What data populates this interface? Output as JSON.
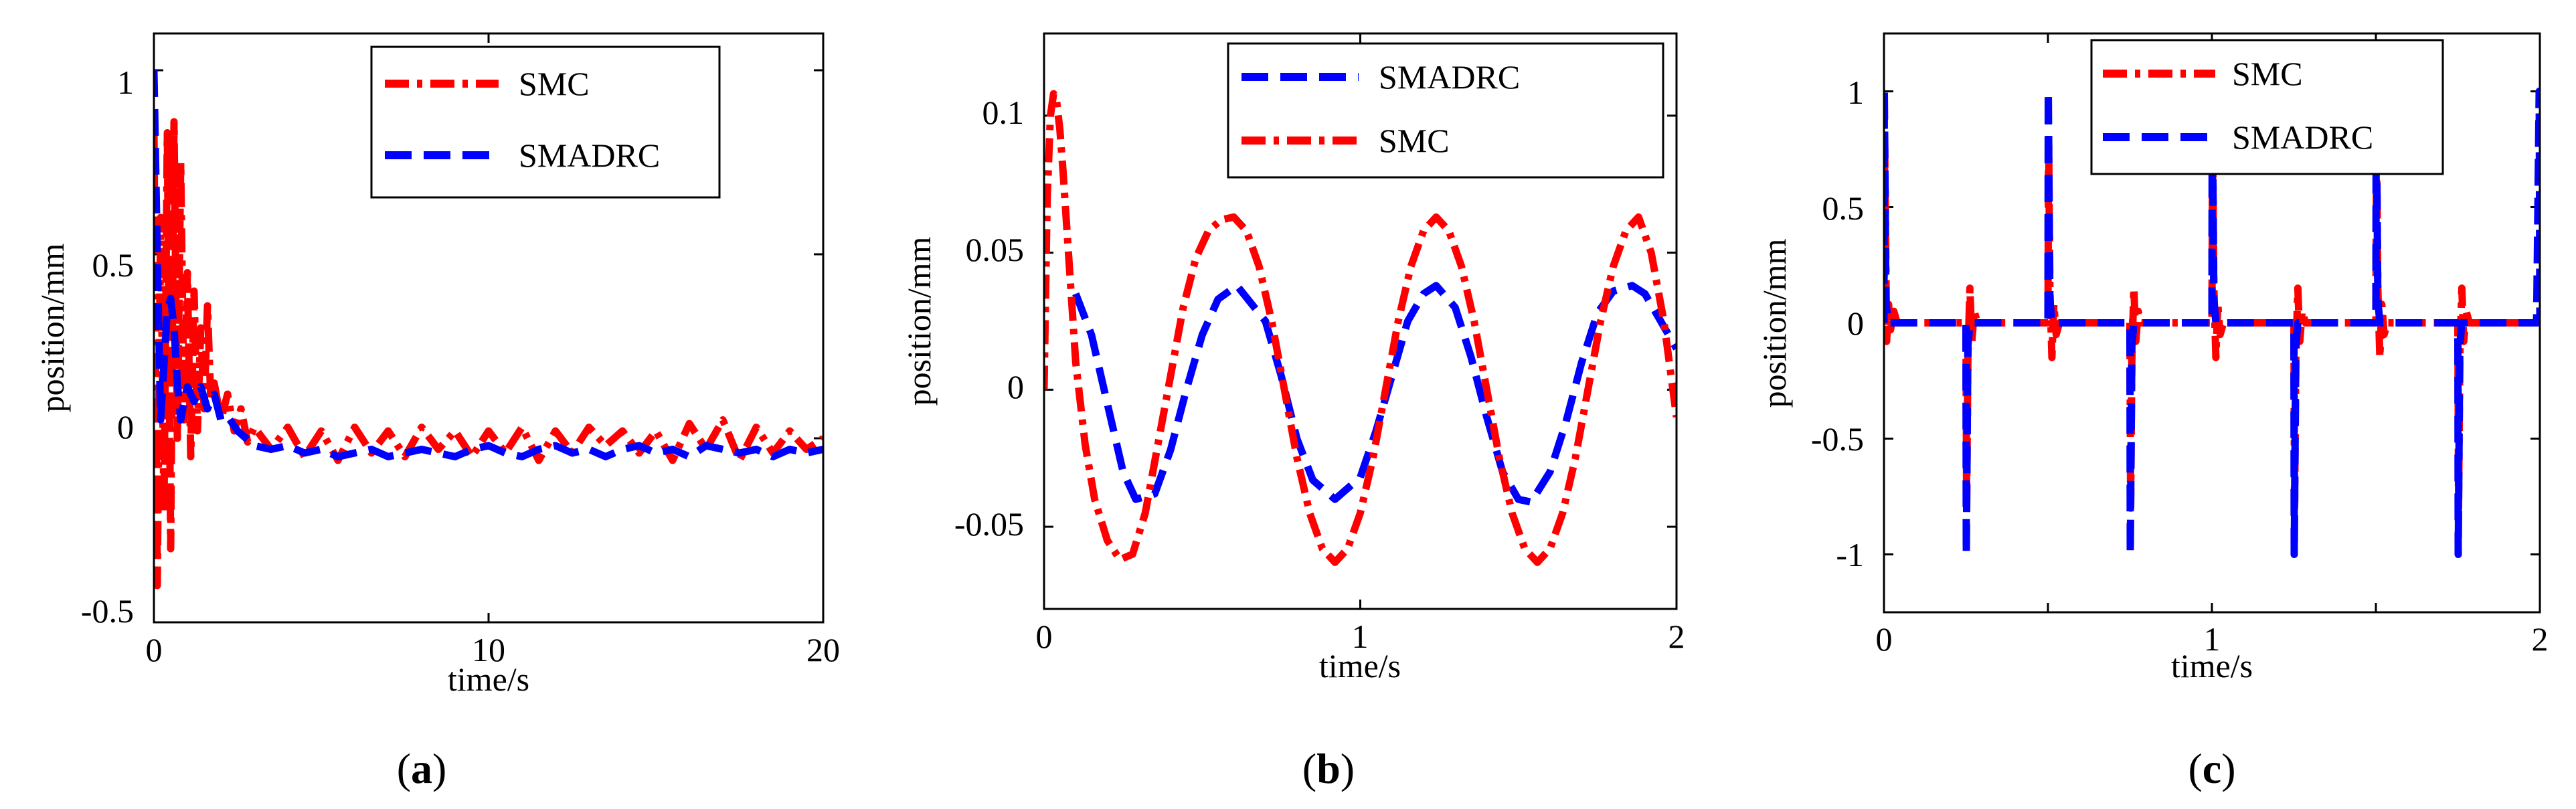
{
  "chart_data": [
    {
      "type": "line",
      "panel": "a",
      "caption": "(a)",
      "caption_parts": {
        "open": "(",
        "letter": "a",
        "close": ")"
      },
      "xlabel": "time/s",
      "ylabel": "position/mm",
      "xlim": [
        0,
        20
      ],
      "ylim": [
        -0.5,
        1.1
      ],
      "xticks": [
        0,
        10,
        20
      ],
      "xtick_labels": [
        "0",
        "10",
        "20"
      ],
      "yticks": [
        -0.5,
        0,
        0.5,
        1
      ],
      "ytick_labels": [
        "-0.5",
        "0",
        "0.5",
        "1"
      ],
      "legend_position": "top-right",
      "legend": [
        "SMC",
        "SMADRC"
      ],
      "series": [
        {
          "name": "SMC",
          "color": "#ff0000",
          "dash": "dashdot",
          "x": [
            0,
            0.1,
            0.2,
            0.3,
            0.4,
            0.5,
            0.6,
            0.7,
            0.8,
            0.9,
            1.0,
            1.1,
            1.2,
            1.3,
            1.4,
            1.5,
            1.6,
            1.7,
            1.8,
            2.0,
            2.2,
            2.4,
            2.6,
            2.8,
            3.0,
            3.5,
            4.0,
            4.5,
            5.0,
            5.5,
            6.0,
            6.5,
            7.0,
            7.5,
            8.0,
            8.5,
            9.0,
            9.5,
            10.0,
            10.5,
            11.0,
            11.5,
            12.0,
            12.5,
            13.0,
            13.5,
            14.0,
            14.5,
            15.0,
            15.5,
            16.0,
            16.5,
            17.0,
            17.5,
            18.0,
            18.5,
            19.0,
            19.5,
            20.0
          ],
          "values": [
            0.85,
            -0.4,
            0.6,
            -0.2,
            0.83,
            -0.3,
            0.86,
            0.0,
            0.75,
            0.05,
            0.45,
            -0.05,
            0.4,
            0.02,
            0.3,
            0.08,
            0.36,
            0.1,
            0.15,
            0.05,
            0.12,
            0.02,
            0.08,
            -0.01,
            0.03,
            -0.03,
            0.03,
            -0.05,
            0.02,
            -0.06,
            0.03,
            -0.04,
            0.02,
            -0.05,
            0.03,
            -0.03,
            0.02,
            -0.05,
            0.02,
            -0.04,
            0.03,
            -0.06,
            0.02,
            -0.04,
            0.03,
            -0.02,
            0.02,
            -0.04,
            0.02,
            -0.06,
            0.04,
            -0.03,
            0.05,
            -0.06,
            0.03,
            -0.04,
            0.02,
            -0.03,
            0.0
          ]
        },
        {
          "name": "SMADRC",
          "color": "#0000ff",
          "dash": "dash",
          "x": [
            0,
            0.1,
            0.2,
            0.3,
            0.4,
            0.5,
            0.6,
            0.7,
            0.8,
            0.9,
            1.0,
            1.2,
            1.4,
            1.6,
            1.8,
            2.0,
            2.2,
            2.5,
            3.0,
            3.5,
            4.0,
            4.5,
            5.0,
            5.5,
            6.0,
            6.5,
            7.0,
            7.5,
            8.0,
            8.5,
            9.0,
            9.5,
            10.0,
            10.5,
            11.0,
            11.5,
            12.0,
            12.5,
            13.0,
            13.5,
            14.0,
            14.5,
            15.0,
            15.5,
            16.0,
            16.5,
            17.0,
            17.5,
            18.0,
            18.5,
            19.0,
            19.5,
            20.0
          ],
          "values": [
            1.0,
            0.5,
            0.05,
            0.2,
            0.35,
            0.38,
            0.3,
            0.15,
            0.05,
            0.1,
            0.14,
            0.1,
            0.14,
            0.08,
            0.12,
            0.05,
            0.06,
            0.02,
            -0.02,
            -0.03,
            -0.02,
            -0.04,
            -0.03,
            -0.05,
            -0.04,
            -0.03,
            -0.05,
            -0.04,
            -0.03,
            -0.04,
            -0.05,
            -0.03,
            -0.02,
            -0.04,
            -0.05,
            -0.03,
            -0.02,
            -0.04,
            -0.03,
            -0.05,
            -0.03,
            -0.02,
            -0.04,
            -0.03,
            -0.05,
            -0.02,
            -0.03,
            -0.04,
            -0.03,
            -0.05,
            -0.03,
            -0.04,
            -0.03
          ]
        }
      ]
    },
    {
      "type": "line",
      "panel": "b",
      "caption": "(b)",
      "caption_parts": {
        "open": "(",
        "letter": "b",
        "close": ")"
      },
      "xlabel": "time/s",
      "ylabel": "position/mm",
      "xlim": [
        0,
        2
      ],
      "ylim": [
        -0.08,
        0.13
      ],
      "xticks": [
        0,
        1,
        2
      ],
      "xtick_labels": [
        "0",
        "1",
        "2"
      ],
      "yticks": [
        -0.05,
        0,
        0.05,
        0.1
      ],
      "ytick_labels": [
        "-0.05",
        "0",
        "0.05",
        "0.1"
      ],
      "legend_position": "top-right",
      "legend": [
        "SMADRC",
        "SMC"
      ],
      "series": [
        {
          "name": "SMADRC",
          "color": "#0000ff",
          "dash": "dash",
          "x": [
            0.1,
            0.15,
            0.2,
            0.25,
            0.29,
            0.35,
            0.4,
            0.45,
            0.5,
            0.55,
            0.61,
            0.7,
            0.75,
            0.8,
            0.85,
            0.92,
            1.0,
            1.05,
            1.1,
            1.15,
            1.2,
            1.24,
            1.3,
            1.35,
            1.4,
            1.45,
            1.5,
            1.54,
            1.6,
            1.65,
            1.7,
            1.75,
            1.8,
            1.86,
            1.9,
            1.95,
            2.0
          ],
          "values": [
            0.035,
            0.02,
            -0.005,
            -0.03,
            -0.04,
            -0.038,
            -0.022,
            0.0,
            0.02,
            0.033,
            0.038,
            0.025,
            0.005,
            -0.018,
            -0.033,
            -0.04,
            -0.032,
            -0.015,
            0.005,
            0.025,
            0.035,
            0.038,
            0.03,
            0.012,
            -0.01,
            -0.03,
            -0.04,
            -0.041,
            -0.03,
            -0.012,
            0.01,
            0.028,
            0.036,
            0.038,
            0.035,
            0.025,
            0.015
          ]
        },
        {
          "name": "SMC",
          "color": "#ff0000",
          "dash": "dashdot",
          "x": [
            0.0,
            0.01,
            0.02,
            0.03,
            0.04,
            0.05,
            0.06,
            0.08,
            0.1,
            0.13,
            0.16,
            0.2,
            0.24,
            0.28,
            0.32,
            0.36,
            0.4,
            0.44,
            0.48,
            0.52,
            0.56,
            0.6,
            0.64,
            0.68,
            0.72,
            0.76,
            0.8,
            0.84,
            0.88,
            0.92,
            0.96,
            1.0,
            1.04,
            1.08,
            1.12,
            1.16,
            1.2,
            1.24,
            1.28,
            1.32,
            1.36,
            1.4,
            1.44,
            1.48,
            1.52,
            1.56,
            1.6,
            1.64,
            1.68,
            1.72,
            1.76,
            1.8,
            1.84,
            1.88,
            1.92,
            1.96,
            2.0
          ],
          "values": [
            0.0,
            0.07,
            0.1,
            0.108,
            0.105,
            0.095,
            0.08,
            0.045,
            0.01,
            -0.02,
            -0.04,
            -0.055,
            -0.062,
            -0.06,
            -0.045,
            -0.02,
            0.005,
            0.03,
            0.048,
            0.058,
            0.062,
            0.063,
            0.058,
            0.045,
            0.025,
            0.0,
            -0.025,
            -0.045,
            -0.058,
            -0.063,
            -0.058,
            -0.045,
            -0.025,
            0.0,
            0.025,
            0.045,
            0.058,
            0.063,
            0.058,
            0.045,
            0.025,
            0.0,
            -0.025,
            -0.045,
            -0.058,
            -0.063,
            -0.058,
            -0.045,
            -0.025,
            0.0,
            0.025,
            0.045,
            0.058,
            0.063,
            0.05,
            0.025,
            -0.01
          ]
        }
      ]
    },
    {
      "type": "line",
      "panel": "c",
      "caption": "(c)",
      "caption_parts": {
        "open": "(",
        "letter": "c",
        "close": ")"
      },
      "xlabel": "time/s",
      "ylabel": "position/mm",
      "xlim": [
        0,
        2
      ],
      "ylim": [
        -1.25,
        1.25
      ],
      "xticks": [
        0,
        0.5,
        1,
        1.5,
        2
      ],
      "xtick_labels": [
        "0",
        "0.5",
        "1",
        "1.5",
        "2"
      ],
      "yticks": [
        -1,
        -0.5,
        0,
        0.5,
        1
      ],
      "ytick_labels": [
        "-1",
        "-0.5",
        "0",
        "0.5",
        "1"
      ],
      "legend_position": "top-left",
      "legend": [
        "SMC",
        "SMADRC"
      ],
      "series": [
        {
          "name": "SMC",
          "color": "#ff0000",
          "dash": "dashdot",
          "x": [
            0.0,
            0.002,
            0.004,
            0.008,
            0.014,
            0.02,
            0.03,
            0.04,
            0.05,
            0.25,
            0.252,
            0.256,
            0.262,
            0.268,
            0.275,
            0.285,
            0.3,
            0.5,
            0.502,
            0.506,
            0.512,
            0.518,
            0.525,
            0.535,
            0.55,
            0.75,
            0.752,
            0.756,
            0.762,
            0.768,
            0.775,
            0.785,
            0.8,
            1.0,
            1.002,
            1.006,
            1.012,
            1.018,
            1.025,
            1.035,
            1.05,
            1.25,
            1.252,
            1.256,
            1.262,
            1.268,
            1.275,
            1.285,
            1.3,
            1.5,
            1.502,
            1.506,
            1.512,
            1.518,
            1.525,
            1.535,
            1.55,
            1.75,
            1.752,
            1.756,
            1.762,
            1.768,
            1.775,
            1.785,
            1.8,
            2.0
          ],
          "values": [
            0.0,
            0.78,
            0.5,
            -0.08,
            0.08,
            -0.03,
            0.05,
            0.0,
            0.0,
            0.0,
            -0.8,
            -0.15,
            0.15,
            -0.08,
            0.05,
            0.0,
            0.0,
            0.0,
            0.8,
            0.15,
            -0.15,
            0.08,
            -0.05,
            0.0,
            0.0,
            0.0,
            -0.8,
            -0.15,
            0.15,
            -0.08,
            0.05,
            0.0,
            0.0,
            0.0,
            0.8,
            0.15,
            -0.15,
            0.08,
            -0.05,
            0.0,
            0.0,
            0.0,
            -0.8,
            -0.15,
            0.15,
            -0.08,
            0.05,
            0.0,
            0.0,
            0.0,
            0.8,
            0.15,
            -0.15,
            0.08,
            -0.05,
            0.0,
            0.0,
            0.0,
            -0.8,
            -0.15,
            0.15,
            -0.08,
            0.05,
            0.0,
            0.0,
            0.0
          ]
        },
        {
          "name": "SMADRC",
          "color": "#0000ff",
          "dash": "dash",
          "x": [
            0.0,
            0.001,
            0.006,
            0.012,
            0.25,
            0.251,
            0.256,
            0.262,
            0.5,
            0.501,
            0.506,
            0.512,
            0.75,
            0.751,
            0.756,
            0.762,
            1.0,
            1.001,
            1.006,
            1.012,
            1.25,
            1.251,
            1.256,
            1.262,
            1.5,
            1.501,
            1.506,
            1.512,
            1.75,
            1.751,
            1.756,
            1.762,
            1.99,
            1.998,
            2.0
          ],
          "values": [
            0.0,
            1.0,
            0.1,
            0.0,
            0.0,
            -1.0,
            -0.1,
            0.0,
            0.0,
            1.0,
            0.1,
            0.0,
            0.0,
            -1.0,
            -0.1,
            0.0,
            0.0,
            1.0,
            0.1,
            0.0,
            0.0,
            -1.0,
            -0.1,
            0.0,
            0.0,
            1.0,
            0.1,
            0.0,
            0.0,
            -1.0,
            -0.1,
            0.0,
            0.0,
            1.0,
            0.0
          ]
        }
      ]
    }
  ]
}
